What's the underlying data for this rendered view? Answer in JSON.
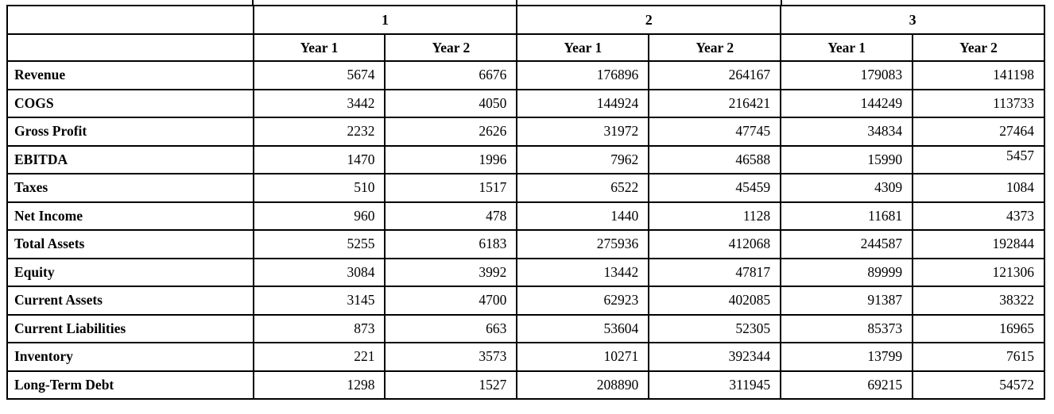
{
  "page": {
    "background_color": "#ffffff",
    "border_color": "#000000",
    "text_color": "#000000"
  },
  "table": {
    "corner_label": "",
    "group_headers": [
      {
        "label": "1",
        "span": 2
      },
      {
        "label": "2",
        "span": 2
      },
      {
        "label": "3",
        "span": 2
      }
    ],
    "year_headers": [
      "Year 1",
      "Year 2",
      "Year 1",
      "Year 2",
      "Year 1",
      "Year 2"
    ],
    "rows": [
      {
        "label": "Revenue",
        "values": [
          5674,
          6676,
          176896,
          264167,
          179083,
          141198
        ]
      },
      {
        "label": "COGS",
        "values": [
          3442,
          4050,
          144924,
          216421,
          144249,
          113733
        ]
      },
      {
        "label": "Gross Profit",
        "values": [
          2232,
          2626,
          31972,
          47745,
          34834,
          27464
        ]
      },
      {
        "label": "EBITDA",
        "values": [
          1470,
          1996,
          7962,
          46588,
          15990,
          5457
        ]
      },
      {
        "label": "Taxes",
        "values": [
          510,
          1517,
          6522,
          45459,
          4309,
          1084
        ]
      },
      {
        "label": "Net Income",
        "values": [
          960,
          478,
          1440,
          1128,
          11681,
          4373
        ]
      },
      {
        "label": "Total Assets",
        "values": [
          5255,
          6183,
          275936,
          412068,
          244587,
          192844
        ]
      },
      {
        "label": "Equity",
        "values": [
          3084,
          3992,
          13442,
          47817,
          89999,
          121306
        ]
      },
      {
        "label": "Current Assets",
        "values": [
          3145,
          4700,
          62923,
          402085,
          91387,
          38322
        ]
      },
      {
        "label": "Current Liabilities",
        "values": [
          873,
          663,
          53604,
          52305,
          85373,
          16965
        ]
      },
      {
        "label": "Inventory",
        "values": [
          221,
          3573,
          10271,
          392344,
          13799,
          7615
        ]
      },
      {
        "label": "Long-Term Debt",
        "values": [
          1298,
          1527,
          208890,
          311945,
          69215,
          54572
        ]
      }
    ],
    "layout_hints": {
      "raised_cell": {
        "row_index": 3,
        "value_index": 5
      }
    }
  }
}
